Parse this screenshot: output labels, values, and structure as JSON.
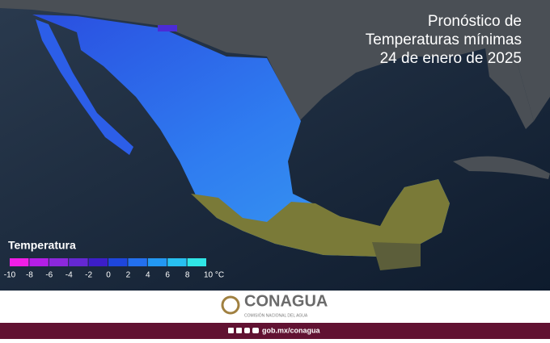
{
  "header": {
    "title": [
      "Pronóstico de",
      "Temperaturas mínimas",
      "24 de enero de 2025"
    ]
  },
  "legend": {
    "title": "Temperatura",
    "ticks": [
      -10,
      -8,
      -6,
      -4,
      -2,
      0,
      2,
      4,
      6,
      8,
      {
        "value": 10,
        "label": "10 °C"
      }
    ],
    "colors": [
      "#f01ee6",
      "#b41ee6",
      "#8c28dc",
      "#6428d2",
      "#3c1ec8",
      "#1e46dc",
      "#2370ee",
      "#2398f2",
      "#28c0f0",
      "#30e6e6"
    ]
  },
  "footer": {
    "logo": "CONAGUA",
    "subtitle": "COMISIÓN NACIONAL DEL AGUA",
    "website": "gob.mx/conagua"
  }
}
